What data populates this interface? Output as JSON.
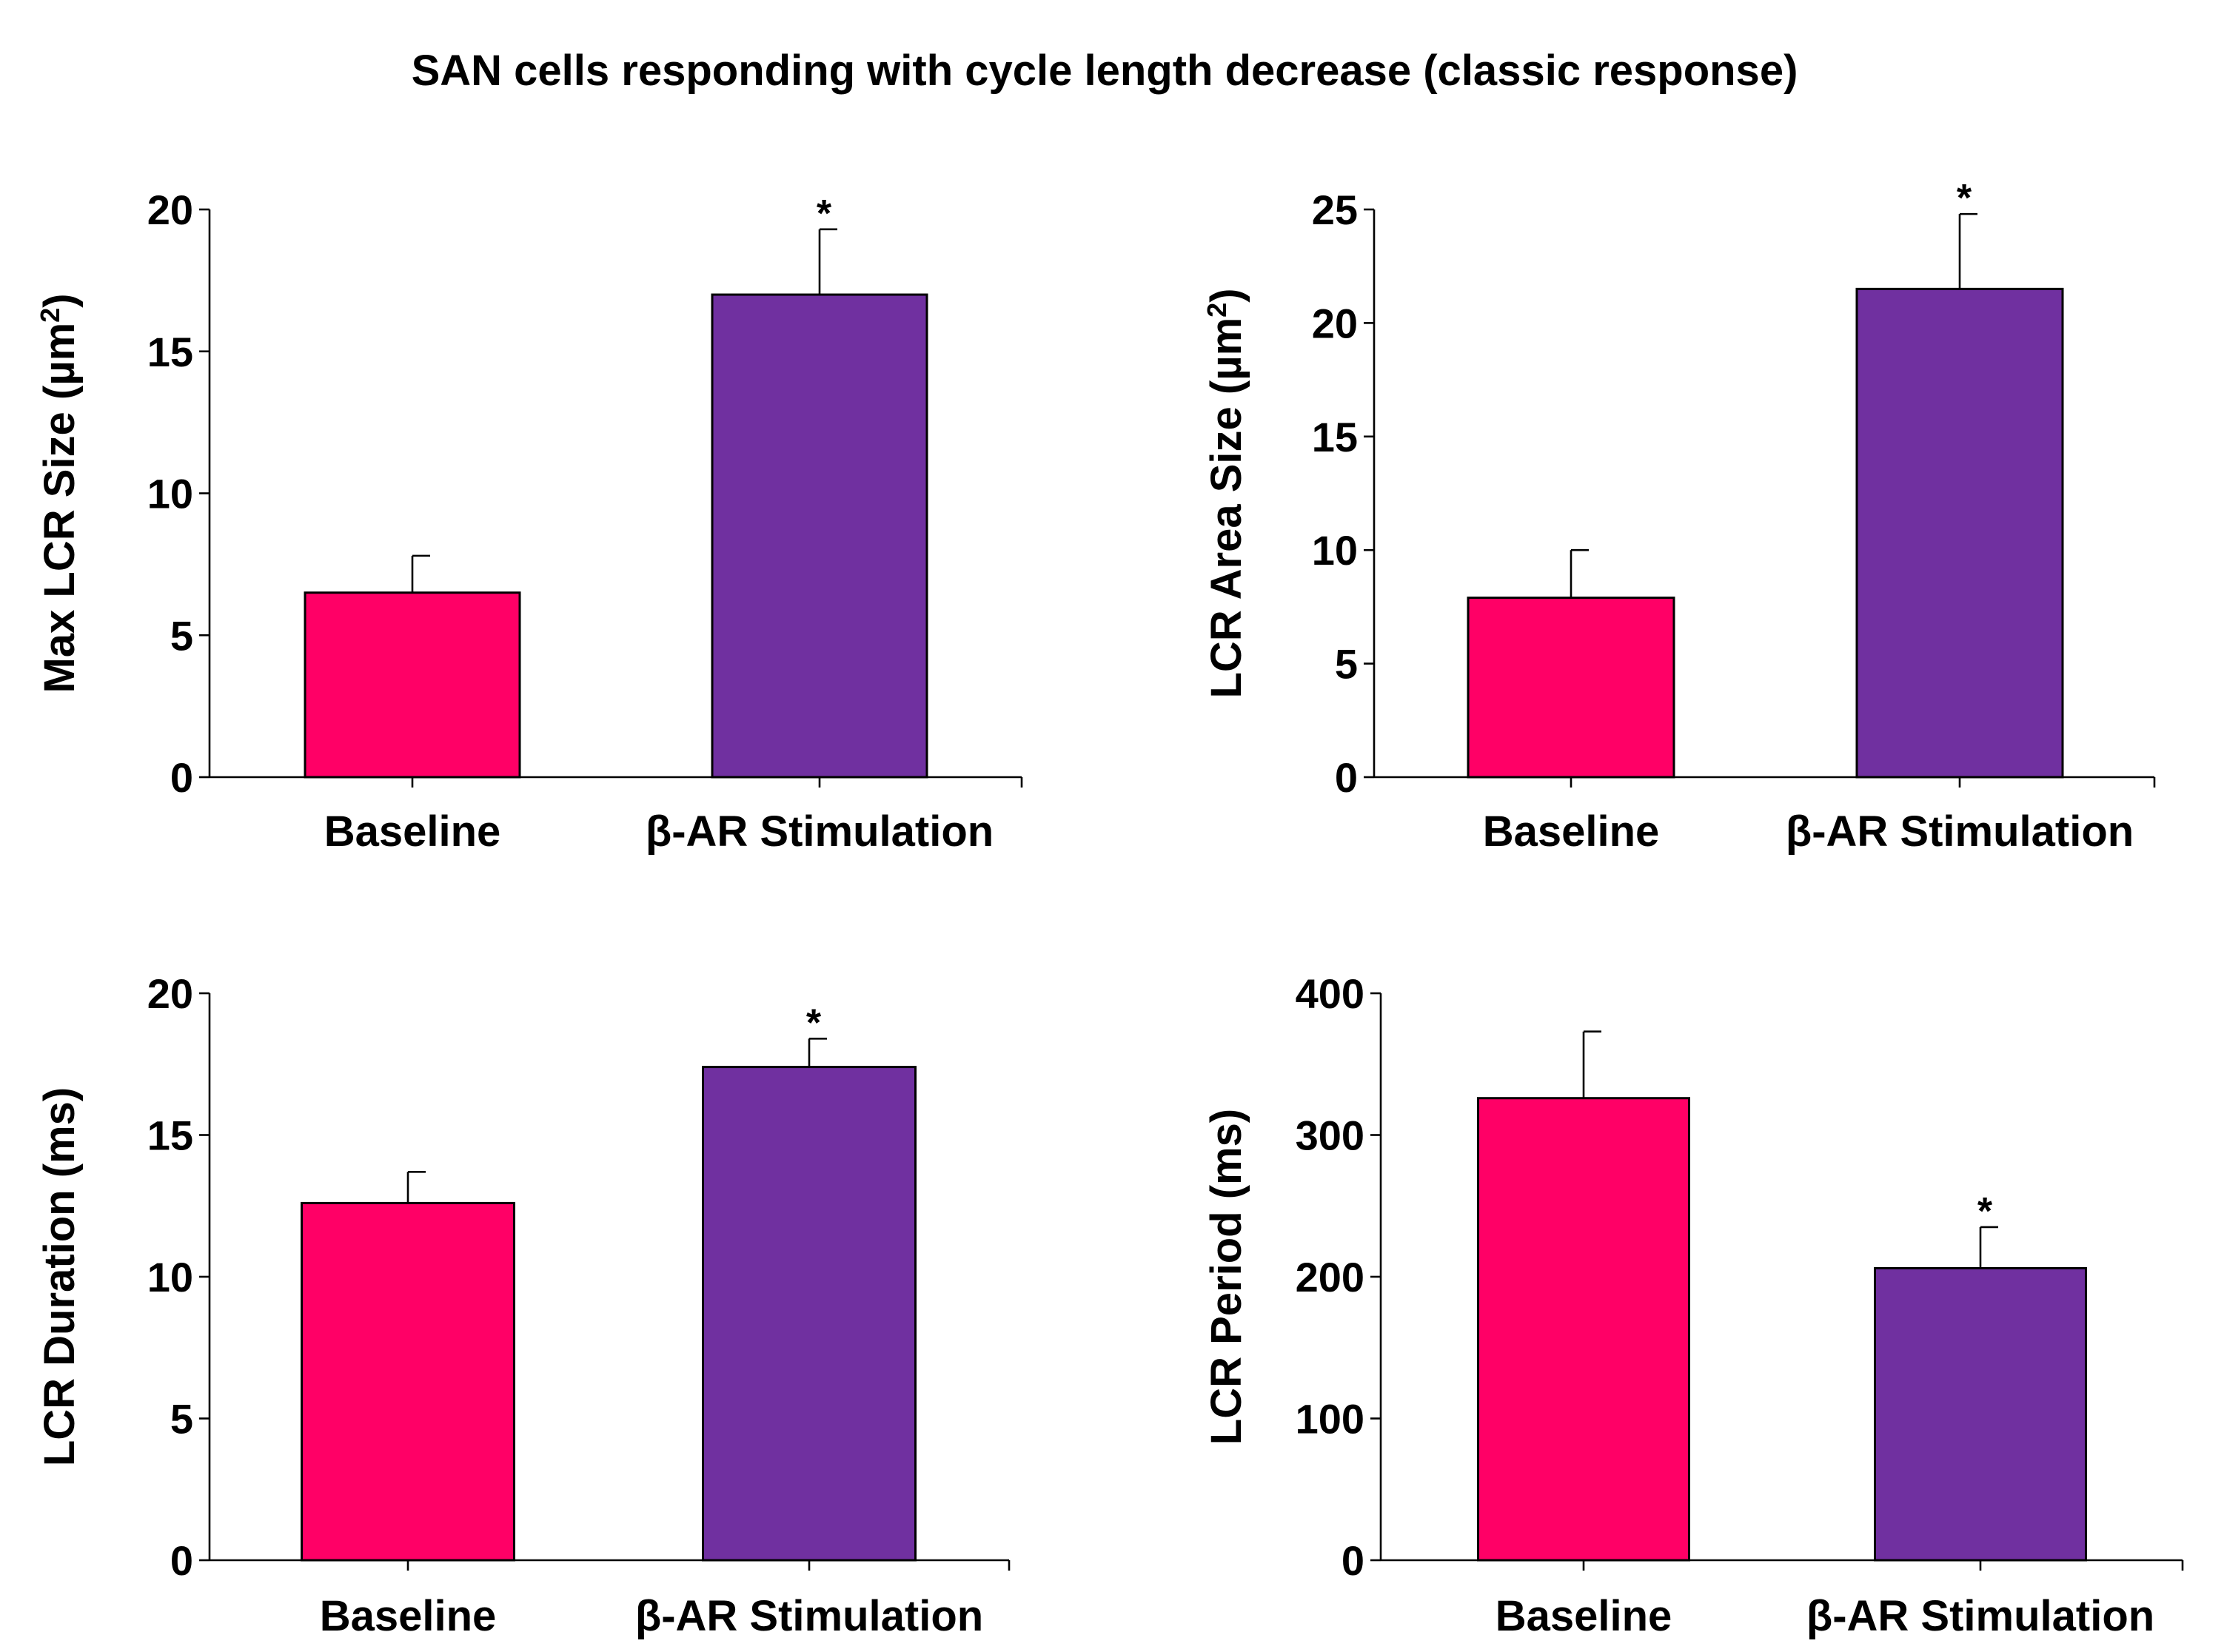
{
  "title": "SAN cells responding with cycle length decrease (classic response)",
  "colors": {
    "baseline": "#FF0066",
    "stimulation": "#7030A0",
    "axis": "#000000"
  },
  "chart_data": [
    {
      "type": "bar",
      "ylabel": "Max LCR  Size (µm2)",
      "ylabel_main": "Max LCR  Size (µm",
      "ylabel_sup": "2",
      "ylabel_close": ")",
      "categories": [
        "Baseline",
        "β-AR Stimulation"
      ],
      "values": [
        6.5,
        17.0
      ],
      "errors": [
        1.3,
        2.3
      ],
      "significance": [
        "",
        "*"
      ],
      "ylim": [
        0,
        20
      ],
      "yticks": [
        0,
        5,
        10,
        15,
        20
      ],
      "ytick_labels": [
        "0",
        "5",
        "10",
        "15",
        "20"
      ]
    },
    {
      "type": "bar",
      "ylabel": "LCR Area Size (µm2)",
      "ylabel_main": "LCR Area Size (µm",
      "ylabel_sup": "2",
      "ylabel_close": ")",
      "categories": [
        "Baseline",
        "β-AR Stimulation"
      ],
      "values": [
        7.9,
        21.5
      ],
      "errors": [
        2.1,
        3.3
      ],
      "significance": [
        "",
        "*"
      ],
      "ylim": [
        0,
        25
      ],
      "yticks": [
        0,
        5,
        10,
        15,
        20,
        25
      ],
      "ytick_labels": [
        "0",
        "5",
        "10",
        "15",
        "20",
        "25"
      ]
    },
    {
      "type": "bar",
      "ylabel": "LCR Duration (ms)",
      "categories": [
        "Baseline",
        "β-AR Stimulation"
      ],
      "values": [
        12.6,
        17.4
      ],
      "errors": [
        1.1,
        1.0
      ],
      "significance": [
        "",
        "*"
      ],
      "ylim": [
        0,
        20
      ],
      "yticks": [
        0,
        5,
        10,
        15,
        20
      ],
      "ytick_labels": [
        "0",
        "5",
        "10",
        "15",
        "20"
      ]
    },
    {
      "type": "bar",
      "ylabel": "LCR Period (ms)",
      "categories": [
        "Baseline",
        "β-AR Stimulation"
      ],
      "values": [
        326,
        206
      ],
      "errors": [
        47,
        29
      ],
      "significance": [
        "",
        "*"
      ],
      "ylim": [
        0,
        400
      ],
      "yticks": [
        0,
        100,
        200,
        300,
        400
      ],
      "ytick_labels": [
        "0",
        "100",
        "200",
        "300",
        "400"
      ]
    }
  ]
}
